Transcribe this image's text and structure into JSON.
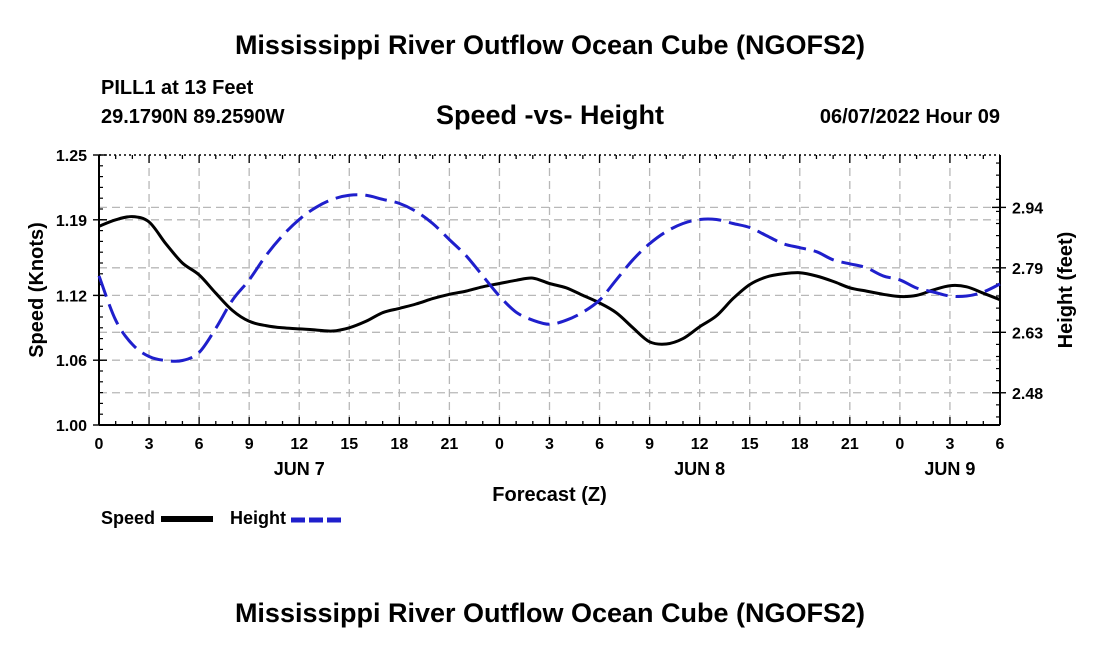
{
  "header": {
    "title": "Mississippi River Outflow Ocean Cube (NGOFS2)",
    "station": "PILL1 at 13 Feet",
    "coords": "29.1790N  89.2590W",
    "chart_title": "Speed -vs- Height",
    "datetime": "06/07/2022 Hour 09"
  },
  "footer": {
    "title": "Mississippi River Outflow Ocean Cube (NGOFS2)"
  },
  "legend": {
    "speed_label": "Speed",
    "height_label": "Height"
  },
  "colors": {
    "speed": "#000000",
    "height": "#1f1fcc",
    "grid": "#b8b8b8"
  },
  "chart_data": {
    "type": "line",
    "title": "Speed -vs- Height",
    "xlabel": "Forecast (Z)",
    "ylabel": "Speed (Knots)",
    "y2label": "Height (feet)",
    "xlim": [
      0,
      54
    ],
    "ylim": [
      1.0,
      1.25
    ],
    "y2lim": [
      2.4,
      3.07
    ],
    "grid": true,
    "legend_position": "bottom-left",
    "x_ticks": [
      0,
      3,
      6,
      9,
      12,
      15,
      18,
      21,
      24,
      27,
      30,
      33,
      36,
      39,
      42,
      45,
      48,
      51,
      54
    ],
    "x_tick_labels": [
      "0",
      "3",
      "6",
      "9",
      "12",
      "15",
      "18",
      "21",
      "0",
      "3",
      "6",
      "9",
      "12",
      "15",
      "18",
      "21",
      "0",
      "3",
      "6"
    ],
    "y_ticks": [
      1.0,
      1.06,
      1.12,
      1.19,
      1.25
    ],
    "y_tick_labels": [
      "1.00",
      "1.06",
      "1.12",
      "1.19",
      "1.25"
    ],
    "y2_ticks": [
      2.48,
      2.63,
      2.79,
      2.94
    ],
    "y2_tick_labels": [
      "2.48",
      "2.63",
      "2.79",
      "2.94"
    ],
    "date_labels": [
      {
        "x": 12,
        "label": "JUN 7"
      },
      {
        "x": 36,
        "label": "JUN 8"
      },
      {
        "x": 51,
        "label": "JUN 9"
      }
    ],
    "series": [
      {
        "name": "Speed",
        "axis": "left",
        "x": [
          0,
          1,
          2,
          3,
          4,
          5,
          6,
          7,
          8,
          9,
          10,
          11,
          12,
          13,
          14,
          15,
          16,
          17,
          18,
          19,
          20,
          21,
          22,
          23,
          24,
          25,
          26,
          27,
          28,
          29,
          30,
          31,
          32,
          33,
          34,
          35,
          36,
          37,
          38,
          39,
          40,
          41,
          42,
          43,
          44,
          45,
          46,
          47,
          48,
          49,
          50,
          51,
          52,
          53,
          54
        ],
        "values": [
          1.184,
          1.19,
          1.193,
          1.188,
          1.168,
          1.15,
          1.139,
          1.122,
          1.106,
          1.096,
          1.092,
          1.09,
          1.089,
          1.088,
          1.087,
          1.09,
          1.096,
          1.104,
          1.108,
          1.112,
          1.117,
          1.121,
          1.124,
          1.128,
          1.131,
          1.134,
          1.136,
          1.131,
          1.127,
          1.12,
          1.113,
          1.104,
          1.09,
          1.077,
          1.075,
          1.08,
          1.091,
          1.101,
          1.117,
          1.13,
          1.137,
          1.14,
          1.141,
          1.138,
          1.133,
          1.127,
          1.124,
          1.121,
          1.119,
          1.12,
          1.125,
          1.129,
          1.128,
          1.122,
          1.116
        ]
      },
      {
        "name": "Height",
        "axis": "right",
        "x": [
          0,
          1,
          2,
          3,
          4,
          5,
          6,
          7,
          8,
          9,
          10,
          11,
          12,
          13,
          14,
          15,
          16,
          17,
          18,
          19,
          20,
          21,
          22,
          23,
          24,
          25,
          26,
          27,
          28,
          29,
          30,
          31,
          32,
          33,
          34,
          35,
          36,
          37,
          38,
          39,
          40,
          41,
          42,
          43,
          44,
          45,
          46,
          47,
          48,
          49,
          50,
          51,
          52,
          53,
          54
        ],
        "values": [
          2.77,
          2.66,
          2.6,
          2.57,
          2.56,
          2.56,
          2.58,
          2.64,
          2.71,
          2.76,
          2.82,
          2.87,
          2.91,
          2.94,
          2.96,
          2.97,
          2.97,
          2.96,
          2.95,
          2.93,
          2.9,
          2.86,
          2.82,
          2.77,
          2.72,
          2.68,
          2.66,
          2.65,
          2.66,
          2.68,
          2.71,
          2.76,
          2.81,
          2.85,
          2.88,
          2.9,
          2.91,
          2.91,
          2.9,
          2.89,
          2.87,
          2.85,
          2.84,
          2.83,
          2.81,
          2.8,
          2.79,
          2.77,
          2.76,
          2.74,
          2.73,
          2.72,
          2.72,
          2.73,
          2.75
        ]
      }
    ]
  }
}
